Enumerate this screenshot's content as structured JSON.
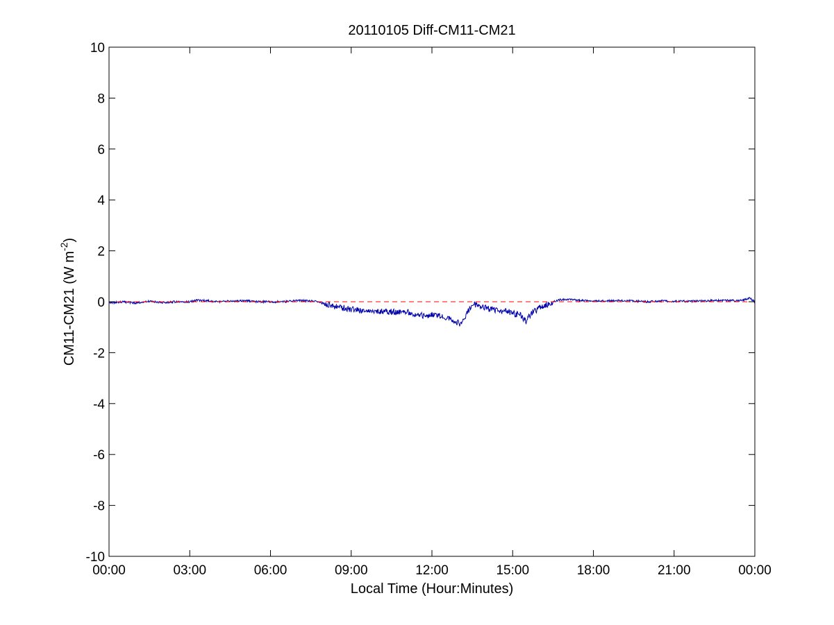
{
  "chart_data": {
    "type": "line",
    "title": "20110105 Diff-CM11-CM21",
    "xlabel": "Local Time (Hour:Minutes)",
    "ylabel_main": "CM11-CM21 (W m",
    "ylabel_sup": "-2",
    "ylabel_close": ")",
    "xlim": [
      0,
      24
    ],
    "ylim": [
      -10,
      10
    ],
    "x_ticks": [
      0,
      3,
      6,
      9,
      12,
      15,
      18,
      21,
      24
    ],
    "x_tick_labels": [
      "00:00",
      "03:00",
      "06:00",
      "09:00",
      "12:00",
      "15:00",
      "18:00",
      "21:00",
      "00:00"
    ],
    "y_ticks": [
      -10,
      -8,
      -6,
      -4,
      -2,
      0,
      2,
      4,
      6,
      8,
      10
    ],
    "y_tick_labels": [
      "-10",
      "-8",
      "-6",
      "-4",
      "-2",
      "0",
      "2",
      "4",
      "6",
      "8",
      "10"
    ],
    "grid": false,
    "series": [
      {
        "color": "#0000aa",
        "style": "solid",
        "x": [
          0,
          0.5,
          1,
          1.5,
          2,
          2.5,
          3,
          3.25,
          3.5,
          4,
          4.5,
          5,
          5.5,
          6,
          6.5,
          7,
          7.5,
          7.75,
          8,
          8.25,
          8.5,
          8.75,
          9,
          9.25,
          9.5,
          9.75,
          10,
          10.25,
          10.5,
          10.75,
          11,
          11.25,
          11.5,
          11.75,
          12,
          12.25,
          12.5,
          12.75,
          13,
          13.1,
          13.2,
          13.3,
          13.5,
          13.6,
          13.75,
          14,
          14.25,
          14.5,
          14.75,
          15,
          15.25,
          15.4,
          15.5,
          15.6,
          15.75,
          16,
          16.25,
          16.5,
          16.75,
          17,
          17.25,
          17.5,
          18,
          18.5,
          19,
          19.5,
          20,
          20.5,
          21,
          21.5,
          22,
          22.5,
          23,
          23.5,
          23.8,
          24
        ],
        "y": [
          -0.05,
          0.0,
          -0.05,
          0.02,
          -0.03,
          0.0,
          0.0,
          0.05,
          0.05,
          0.0,
          0.02,
          0.05,
          0.0,
          0.0,
          0.0,
          0.05,
          0.03,
          0.0,
          -0.08,
          -0.15,
          -0.22,
          -0.25,
          -0.3,
          -0.32,
          -0.35,
          -0.37,
          -0.38,
          -0.4,
          -0.4,
          -0.42,
          -0.38,
          -0.45,
          -0.5,
          -0.55,
          -0.5,
          -0.55,
          -0.62,
          -0.68,
          -0.85,
          -0.9,
          -0.65,
          -0.45,
          -0.15,
          -0.1,
          -0.15,
          -0.25,
          -0.3,
          -0.4,
          -0.35,
          -0.45,
          -0.5,
          -0.65,
          -0.75,
          -0.6,
          -0.4,
          -0.25,
          -0.12,
          0.0,
          0.08,
          0.1,
          0.07,
          0.05,
          0.05,
          0.03,
          0.05,
          0.03,
          0.0,
          0.03,
          0.02,
          0.02,
          0.03,
          0.05,
          0.05,
          0.05,
          0.15,
          0.0
        ]
      },
      {
        "color": "#ff0000",
        "style": "dashed",
        "x": [
          0,
          24
        ],
        "y": [
          0,
          0
        ]
      }
    ]
  }
}
